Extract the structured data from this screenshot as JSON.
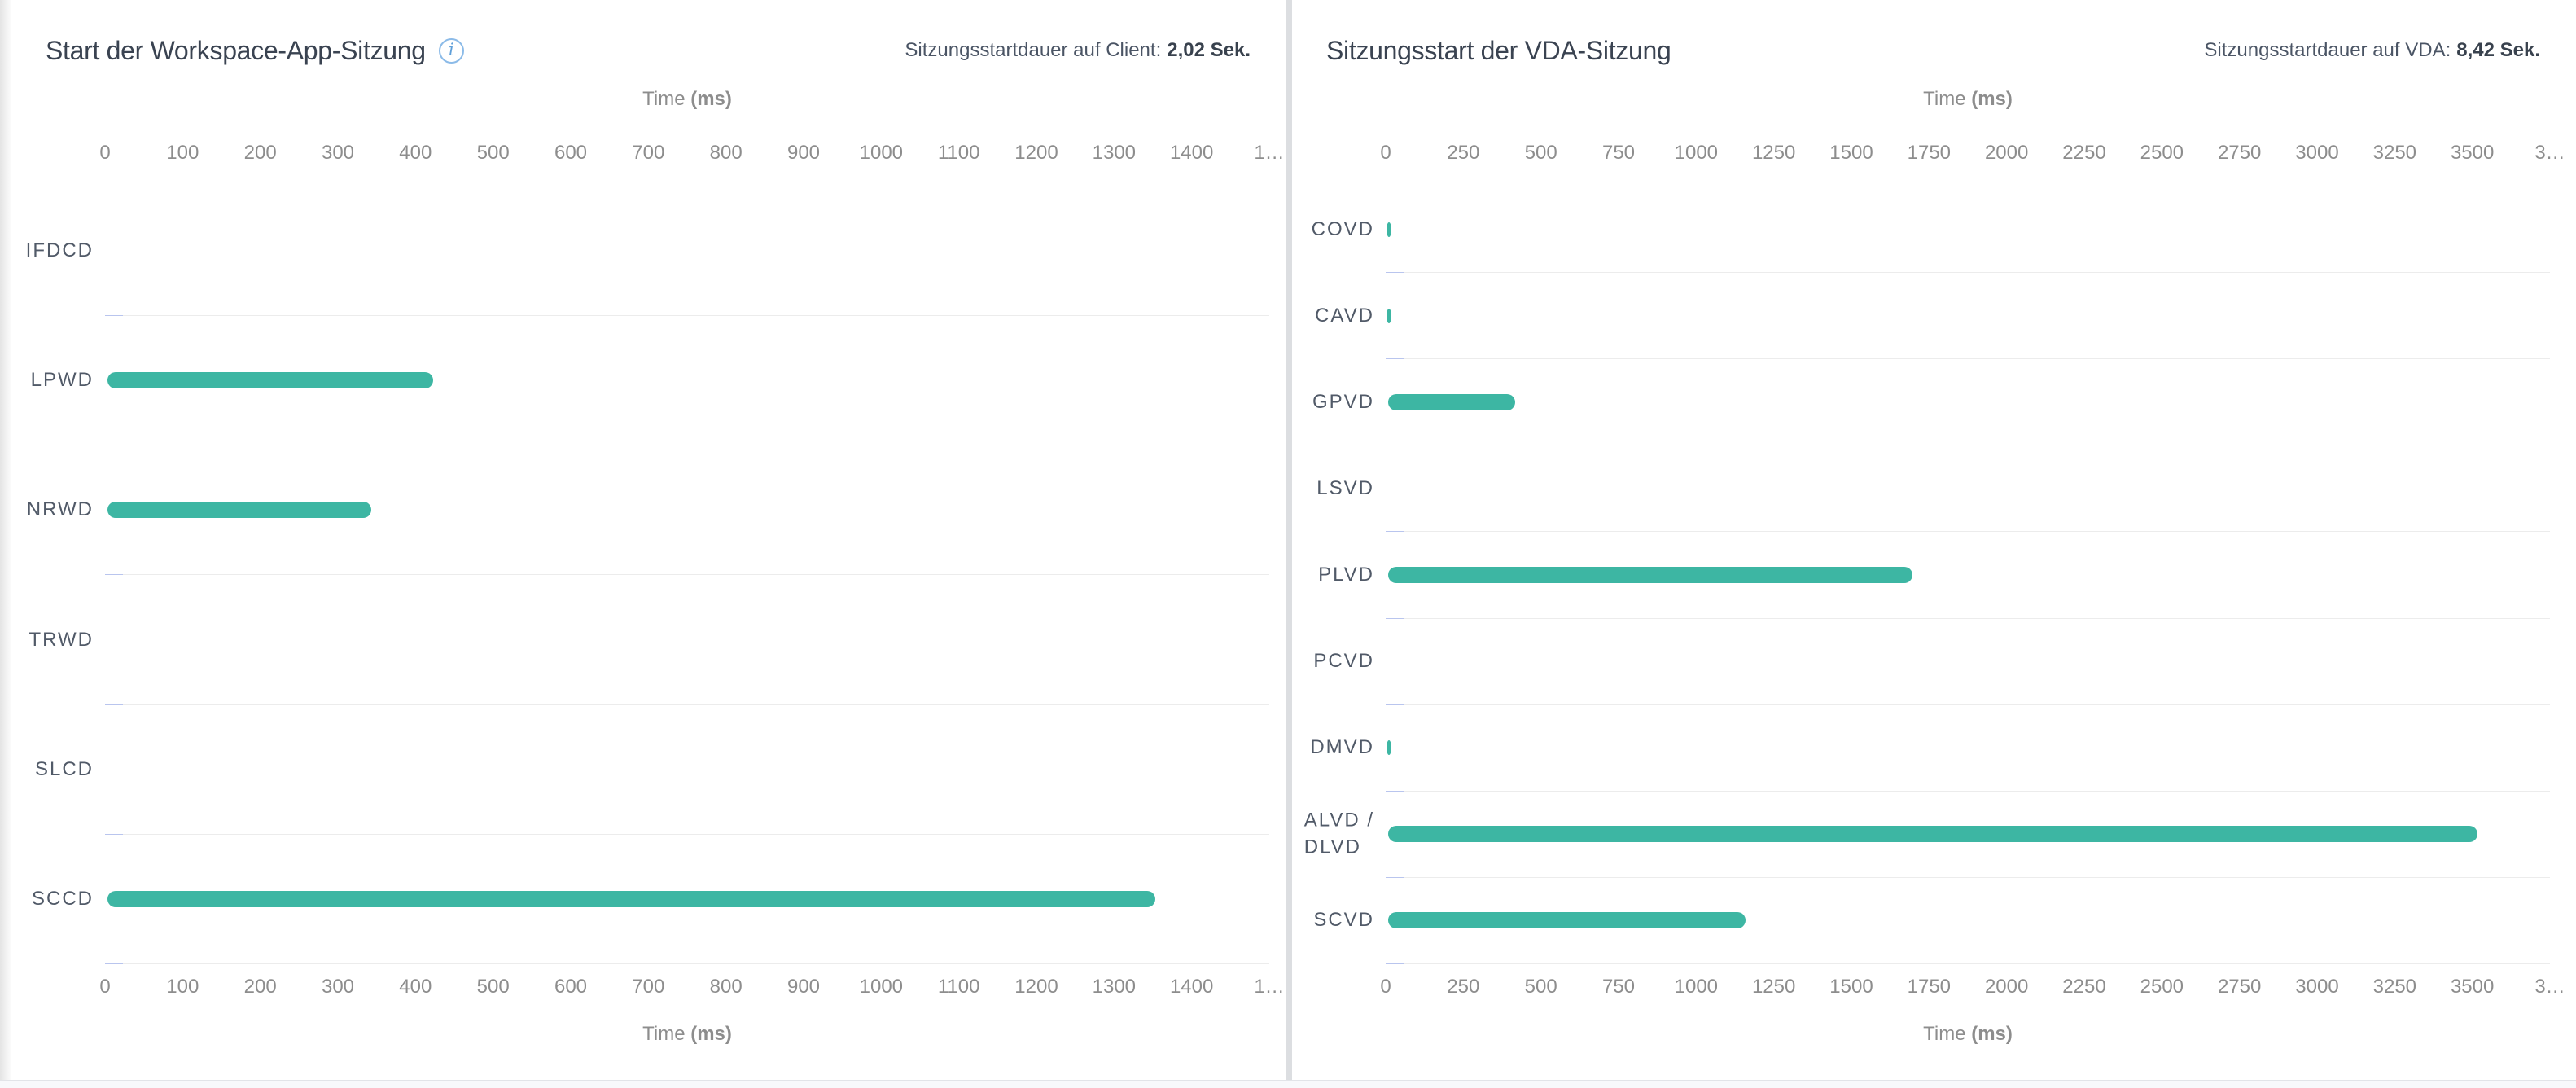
{
  "icons": {
    "info_glyph": "i"
  },
  "chart_data": [
    {
      "type": "bar",
      "orientation": "horizontal",
      "title": "Start der Workspace-App-Sitzung",
      "has_info_icon": true,
      "subtitle_prefix": "Sitzungsstartdauer auf Client:",
      "subtitle_value": "2,02 Sek.",
      "xlabel_prefix": "Time ",
      "xlabel_bold": "(ms)",
      "xlim": [
        0,
        1500
      ],
      "ticks": [
        0,
        100,
        200,
        300,
        400,
        500,
        600,
        700,
        800,
        900,
        1000,
        1100,
        1200,
        1300,
        1400,
        1500
      ],
      "tick_labels": [
        "0",
        "100",
        "200",
        "300",
        "400",
        "500",
        "600",
        "700",
        "800",
        "900",
        "1000",
        "1100",
        "1200",
        "1300",
        "1400",
        "1…"
      ],
      "categories": [
        "IFDCD",
        "LPWD",
        "NRWD",
        "TRWD",
        "SLCD",
        "SCCD"
      ],
      "category_lines": [
        [
          "IFDCD"
        ],
        [
          "LPWD"
        ],
        [
          "NRWD"
        ],
        [
          "TRWD"
        ],
        [
          "SLCD"
        ],
        [
          "SCCD"
        ]
      ],
      "values_ms": [
        0,
        420,
        340,
        0,
        0,
        1350
      ],
      "bar_color": "#3db6a3",
      "grid": "horizontal-separators",
      "legend": false,
      "axes": "top-and-bottom"
    },
    {
      "type": "bar",
      "orientation": "horizontal",
      "title": "Sitzungsstart der VDA-Sitzung",
      "has_info_icon": false,
      "subtitle_prefix": "Sitzungsstartdauer auf VDA:",
      "subtitle_value": "8,42 Sek.",
      "xlabel_prefix": "Time ",
      "xlabel_bold": "(ms)",
      "xlim": [
        0,
        3750
      ],
      "ticks": [
        0,
        250,
        500,
        750,
        1000,
        1250,
        1500,
        1750,
        2000,
        2250,
        2500,
        2750,
        3000,
        3250,
        3500,
        3750
      ],
      "tick_labels": [
        "0",
        "250",
        "500",
        "750",
        "1000",
        "1250",
        "1500",
        "1750",
        "2000",
        "2250",
        "2500",
        "2750",
        "3000",
        "3250",
        "3500",
        "3…"
      ],
      "categories": [
        "COVD",
        "CAVD",
        "GPVD",
        "LSVD",
        "PLVD",
        "PCVD",
        "DMVD",
        "ALVD / DLVD",
        "SCVD"
      ],
      "category_lines": [
        [
          "COVD"
        ],
        [
          "CAVD"
        ],
        [
          "GPVD"
        ],
        [
          "LSVD"
        ],
        [
          "PLVD"
        ],
        [
          "PCVD"
        ],
        [
          "DMVD"
        ],
        [
          "ALVD /",
          "DLVD"
        ],
        [
          "SCVD"
        ]
      ],
      "values_ms": [
        10,
        10,
        410,
        0,
        1690,
        0,
        10,
        3510,
        1150
      ],
      "bar_color": "#3db6a3",
      "grid": "horizontal-separators",
      "legend": false,
      "axes": "top-and-bottom"
    }
  ]
}
